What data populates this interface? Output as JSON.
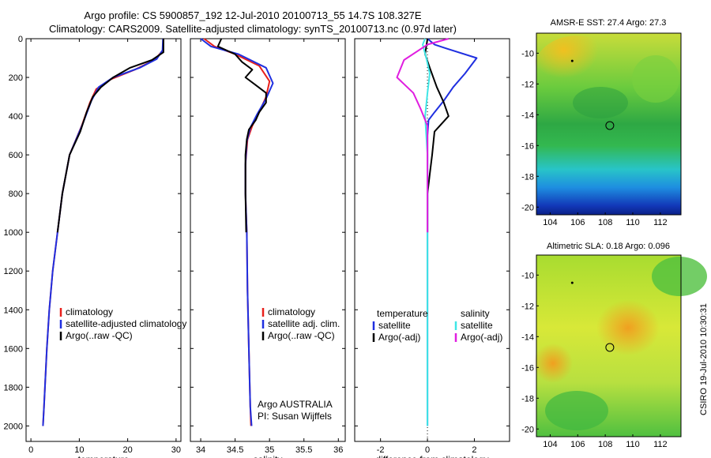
{
  "title_line1": "Argo profile: CS 5900857_192 12-Jul-2010 20100713_55 14.7S 108.327E",
  "title_line2": "Climatology: CARS2009. Satellite-adjusted climatology: synTS_20100713.nc (0.97d later)",
  "credit": "CSIRO 19-Jul-2010 10:30:31",
  "colors": {
    "red": "#e8201c",
    "blue": "#1f2fe0",
    "black": "#000000",
    "cyan": "#3fe6e6",
    "magenta": "#e01ee0"
  },
  "chart_data": [
    {
      "type": "line",
      "name": "temperature-profile",
      "xlabel": "temperature",
      "ylabel": "",
      "xlim": [
        -1,
        31
      ],
      "ylim": [
        2080,
        0
      ],
      "xticks": [
        0,
        10,
        20,
        30
      ],
      "yticks": [
        0,
        200,
        400,
        600,
        800,
        1000,
        1200,
        1400,
        1600,
        1800,
        2000
      ],
      "legend": [
        "climatology",
        "satellite-adjusted climatology",
        "Argo(..raw -QC)"
      ],
      "legend_position": "lower-right",
      "series": [
        {
          "name": "climatology",
          "color": "red",
          "x": [
            27.4,
            27.3,
            25.5,
            21.5,
            16.5,
            13.5,
            12.2,
            10.5,
            8.0,
            6.5,
            5.5,
            4.5,
            3.8,
            3.3,
            2.9,
            2.7,
            2.5
          ],
          "y": [
            0,
            60,
            110,
            160,
            210,
            260,
            330,
            450,
            600,
            800,
            1000,
            1200,
            1400,
            1600,
            1800,
            1900,
            2000
          ]
        },
        {
          "name": "satellite-adjusted climatology",
          "color": "blue",
          "x": [
            27.3,
            27.2,
            26.0,
            22.5,
            17.0,
            14.0,
            12.5,
            10.7,
            8.0,
            6.5,
            5.5,
            4.5,
            3.8,
            3.3,
            2.9,
            2.7,
            2.5
          ],
          "y": [
            0,
            60,
            105,
            150,
            200,
            250,
            320,
            440,
            600,
            800,
            1000,
            1200,
            1400,
            1600,
            1800,
            1900,
            2000
          ]
        },
        {
          "name": "Argo(..raw -QC)",
          "color": "black",
          "x": [
            27.4,
            27.4,
            25.0,
            20.5,
            17.0,
            14.5,
            12.8,
            11.5,
            10.2,
            8.0,
            6.5,
            5.5
          ],
          "y": [
            0,
            70,
            110,
            150,
            200,
            250,
            300,
            380,
            480,
            600,
            800,
            1000
          ]
        }
      ]
    },
    {
      "type": "line",
      "name": "salinity-profile",
      "xlabel": "salinity",
      "ylabel": "",
      "xlim": [
        33.85,
        36.1
      ],
      "ylim": [
        2080,
        0
      ],
      "xticks": [
        34,
        34.5,
        35,
        35.5,
        36
      ],
      "legend": [
        "climatology",
        "satellite adj. clim.",
        "Argo(..raw -QC)"
      ],
      "legend_position": "lower-right",
      "annotation": [
        "Argo AUSTRALIA",
        "PI: Susan Wijffels"
      ],
      "series": [
        {
          "name": "climatology",
          "color": "red",
          "x": [
            34.05,
            34.2,
            34.5,
            34.85,
            35.0,
            34.95,
            34.85,
            34.75,
            34.68,
            34.65,
            34.65,
            34.67,
            34.68,
            34.7,
            34.72,
            34.73
          ],
          "y": [
            0,
            40,
            80,
            140,
            220,
            300,
            380,
            450,
            520,
            650,
            800,
            1000,
            1300,
            1600,
            1900,
            2000
          ]
        },
        {
          "name": "satellite adj. clim.",
          "color": "blue",
          "x": [
            34.0,
            34.15,
            34.55,
            34.95,
            35.05,
            34.95,
            34.82,
            34.72,
            34.67,
            34.65,
            34.65,
            34.67,
            34.68,
            34.7,
            34.72,
            34.74
          ],
          "y": [
            0,
            40,
            80,
            150,
            230,
            310,
            390,
            460,
            530,
            650,
            800,
            1000,
            1300,
            1600,
            1900,
            2000
          ]
        },
        {
          "name": "Argo(..raw -QC)",
          "color": "black",
          "x": [
            34.3,
            34.25,
            34.5,
            34.6,
            34.75,
            34.65,
            34.8,
            34.95,
            34.95,
            34.85,
            34.8,
            34.7,
            34.67,
            34.65,
            34.65,
            34.66
          ],
          "y": [
            0,
            40,
            80,
            120,
            160,
            200,
            240,
            280,
            330,
            380,
            420,
            470,
            520,
            600,
            800,
            1000
          ]
        }
      ]
    },
    {
      "type": "line",
      "name": "difference-profile",
      "xlabel": "difference from climatology",
      "ylabel": "",
      "xlim": [
        -3.1,
        3.5
      ],
      "ylim": [
        2080,
        0
      ],
      "xticks": [
        -2,
        0,
        2
      ],
      "legend_left_header": "temperature",
      "legend_right_header": "salinity",
      "legend_left": [
        "satellite",
        "Argo(-adj)"
      ],
      "legend_right": [
        "satellite",
        "Argo(-adj)"
      ],
      "legend_position": "lower-center",
      "series": [
        {
          "name": "temperature satellite",
          "color": "blue",
          "x": [
            0.0,
            0.3,
            0.8,
            2.1,
            1.6,
            1.1,
            0.7,
            0.3,
            0.05,
            0.0,
            0.0,
            0.0
          ],
          "y": [
            0,
            30,
            50,
            100,
            180,
            250,
            320,
            380,
            420,
            500,
            800,
            2000
          ]
        },
        {
          "name": "temperature Argo(-adj)",
          "color": "black",
          "x": [
            0.0,
            -0.1,
            0.1,
            0.4,
            0.7,
            0.9,
            0.3,
            0.2,
            0.1,
            0.0,
            0.0,
            0.0
          ],
          "y": [
            0,
            80,
            150,
            250,
            330,
            400,
            480,
            600,
            700,
            800,
            900,
            1000
          ]
        },
        {
          "name": "salinity satellite",
          "color": "cyan",
          "x": [
            -0.1,
            -0.2,
            -0.05,
            0.1,
            0.0,
            -0.1,
            0.0,
            0.0,
            0.0
          ],
          "y": [
            0,
            30,
            100,
            180,
            280,
            400,
            600,
            1000,
            2000
          ]
        },
        {
          "name": "salinity Argo(-adj)",
          "color": "magenta",
          "x": [
            0.9,
            0.0,
            -1.0,
            -1.3,
            -0.6,
            -0.3,
            0.0,
            0.0,
            0.0,
            0.0
          ],
          "y": [
            0,
            30,
            110,
            200,
            280,
            360,
            450,
            550,
            700,
            1000
          ]
        }
      ]
    },
    {
      "type": "heatmap",
      "name": "sst-map",
      "title": "AMSR-E SST: 27.4 Argo: 27.3",
      "xlim": [
        103,
        113.5
      ],
      "ylim": [
        -20.5,
        -8.7
      ],
      "xticks": [
        104,
        106,
        108,
        110,
        112
      ],
      "yticks": [
        -10,
        -12,
        -14,
        -16,
        -18,
        -20
      ],
      "argo_position": [
        108.33,
        -14.7
      ],
      "marker_position": [
        105.6,
        -10.5
      ]
    },
    {
      "type": "heatmap",
      "name": "sla-map",
      "title": "Altimetric SLA: 0.18 Argo: 0.096",
      "xlim": [
        103,
        113.5
      ],
      "ylim": [
        -20.5,
        -8.7
      ],
      "xticks": [
        104,
        106,
        108,
        110,
        112
      ],
      "yticks": [
        -10,
        -12,
        -14,
        -16,
        -18,
        -20
      ],
      "argo_position": [
        108.33,
        -14.7
      ],
      "marker_position": [
        105.6,
        -10.5
      ]
    }
  ]
}
